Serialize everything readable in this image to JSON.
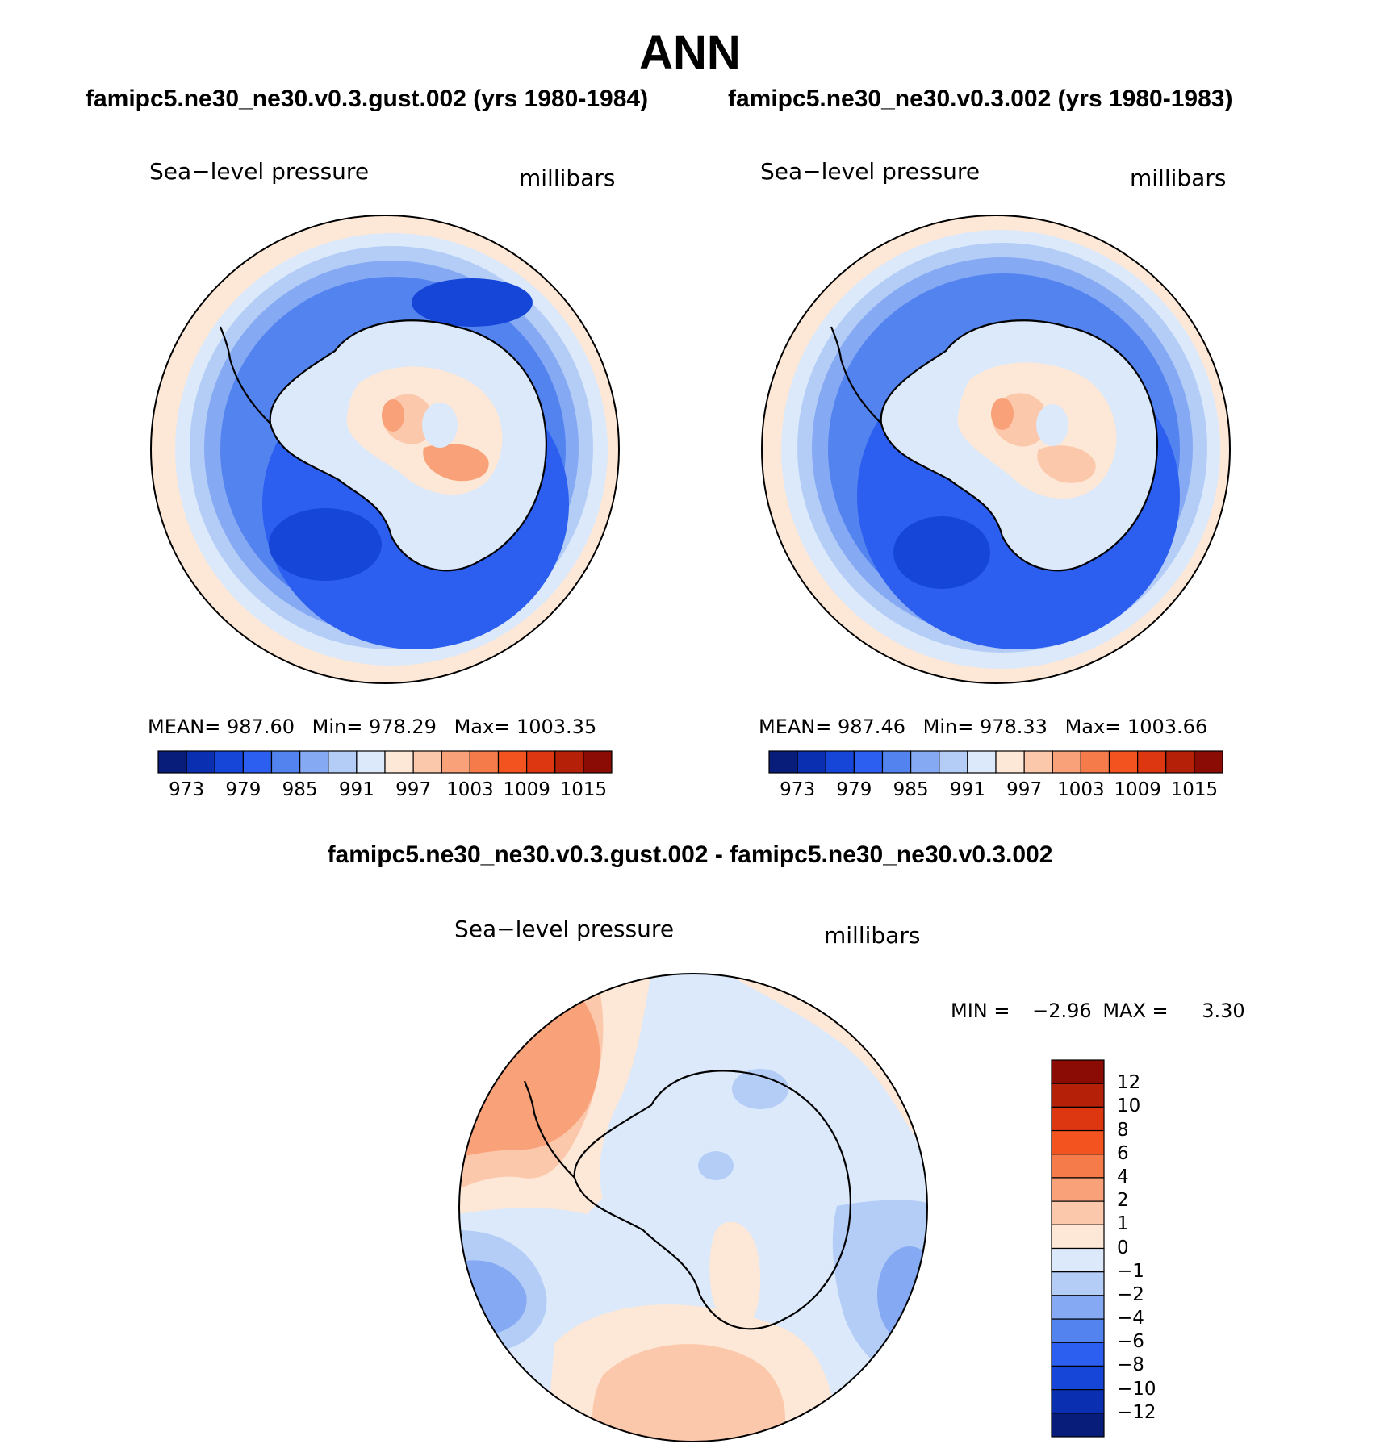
{
  "page": {
    "title": "ANN",
    "diff_title": "famipc5.ne30_ne30.v0.3.gust.002 - famipc5.ne30_ne30.v0.3.002"
  },
  "panels": [
    {
      "case_title": "famipc5.ne30_ne30.v0.3.gust.002 (yrs 1980-1984)",
      "variable": "Sea−level pressure",
      "units": "millibars",
      "stats": {
        "mean_label": "MEAN=",
        "mean": "987.60",
        "min_label": "Min=",
        "min": "978.29",
        "max_label": "Max=",
        "max": "1003.35"
      }
    },
    {
      "case_title": "famipc5.ne30_ne30.v0.3.002 (yrs 1980-1983)",
      "variable": "Sea−level pressure",
      "units": "millibars",
      "stats": {
        "mean_label": "MEAN=",
        "mean": "987.46",
        "min_label": "Min=",
        "min": "978.33",
        "max_label": "Max=",
        "max": "1003.66"
      }
    }
  ],
  "diff_panel": {
    "variable": "Sea−level pressure",
    "units": "millibars",
    "stats": {
      "min_label": "MIN =",
      "min": "−2.96",
      "max_label": "MAX =",
      "max": "3.30"
    }
  },
  "colorbar_main": {
    "ticks": [
      "973",
      "979",
      "985",
      "991",
      "997",
      "1003",
      "1009",
      "1015"
    ],
    "colors": [
      "#081d7a",
      "#0a2fb0",
      "#1546d8",
      "#2c5ff0",
      "#5383ee",
      "#85a9f3",
      "#b4cdf7",
      "#dbe9fb",
      "#fde7d6",
      "#fcc8ab",
      "#f9a27a",
      "#f67b4a",
      "#f3541f",
      "#dc3711",
      "#b42108",
      "#8a0c04"
    ]
  },
  "colorbar_diff": {
    "ticks": [
      "12",
      "10",
      "8",
      "6",
      "4",
      "2",
      "1",
      "0",
      "−1",
      "−2",
      "−4",
      "−6",
      "−8",
      "−10",
      "−12"
    ],
    "colors": [
      "#8a0c04",
      "#b42108",
      "#dc3711",
      "#f3541f",
      "#f67b4a",
      "#f9a27a",
      "#fcc8ab",
      "#fde7d6",
      "#dbe9fb",
      "#b4cdf7",
      "#85a9f3",
      "#5383ee",
      "#2c5ff0",
      "#1546d8",
      "#0a2fb0",
      "#081d7a"
    ]
  }
}
